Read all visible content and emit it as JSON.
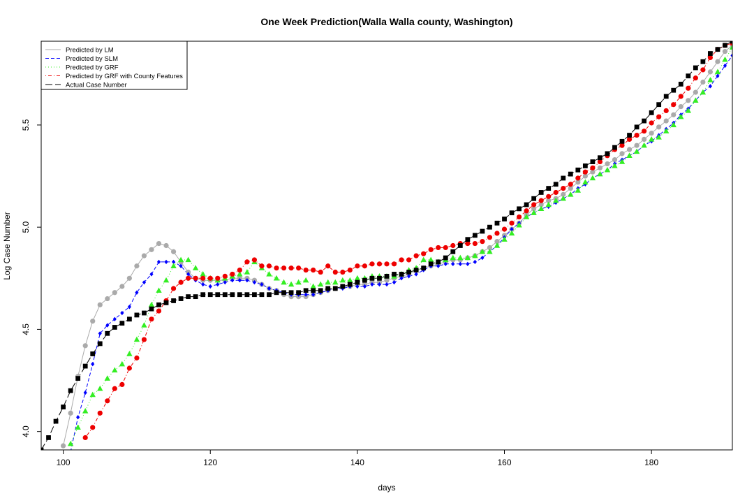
{
  "chart_data": {
    "type": "scatter",
    "title": "One Week Prediction(Walla Walla county, Washington)",
    "xlabel": "days",
    "ylabel": "Log Case Number",
    "xlim": [
      97,
      191
    ],
    "ylim": [
      3.91,
      5.91
    ],
    "xticks": [
      "100",
      "120",
      "140",
      "160",
      "180"
    ],
    "yticks": [
      "4.0",
      "4.5",
      "5.0",
      "5.5"
    ],
    "grid": false,
    "legend_position": "top-left",
    "series": [
      {
        "name": "Predicted by LM",
        "color": "#aaaaaa",
        "marker": "circle",
        "line": "solid",
        "x": [
          100,
          101,
          102,
          103,
          104,
          105,
          106,
          107,
          108,
          109,
          110,
          111,
          112,
          113,
          114,
          115,
          116,
          117,
          118,
          119,
          120,
          121,
          122,
          123,
          124,
          125,
          126,
          127,
          128,
          129,
          130,
          131,
          132,
          133,
          134,
          135,
          136,
          137,
          138,
          139,
          140,
          141,
          142,
          143,
          144,
          145,
          146,
          147,
          148,
          149,
          150,
          151,
          152,
          153,
          154,
          155,
          156,
          157,
          158,
          159,
          160,
          161,
          162,
          163,
          164,
          165,
          166,
          167,
          168,
          169,
          170,
          171,
          172,
          173,
          174,
          175,
          176,
          177,
          178,
          179,
          180,
          181,
          182,
          183,
          184,
          185,
          186,
          187,
          188,
          189,
          190,
          191
        ],
        "y": [
          3.93,
          4.09,
          4.27,
          4.42,
          4.54,
          4.62,
          4.65,
          4.68,
          4.71,
          4.75,
          4.81,
          4.86,
          4.89,
          4.92,
          4.91,
          4.88,
          4.83,
          4.78,
          4.75,
          4.74,
          4.74,
          4.74,
          4.74,
          4.75,
          4.75,
          4.75,
          4.74,
          4.72,
          4.7,
          4.69,
          4.67,
          4.66,
          4.66,
          4.66,
          4.67,
          4.68,
          4.69,
          4.7,
          4.71,
          4.71,
          4.72,
          4.72,
          4.73,
          4.73,
          4.74,
          4.75,
          4.76,
          4.77,
          4.79,
          4.8,
          4.81,
          4.82,
          4.83,
          4.84,
          4.84,
          4.85,
          4.86,
          4.88,
          4.9,
          4.93,
          4.96,
          4.99,
          5.02,
          5.06,
          5.09,
          5.11,
          5.13,
          5.14,
          5.16,
          5.19,
          5.22,
          5.25,
          5.27,
          5.29,
          5.31,
          5.33,
          5.36,
          5.38,
          5.4,
          5.43,
          5.46,
          5.49,
          5.52,
          5.55,
          5.59,
          5.62,
          5.66,
          5.71,
          5.76,
          5.81,
          5.86,
          5.89
        ]
      },
      {
        "name": "Predicted by SLM",
        "color": "#0000ff",
        "marker": "diamond",
        "line": "dashed",
        "x": [
          101,
          102,
          103,
          104,
          105,
          106,
          107,
          108,
          109,
          110,
          111,
          112,
          113,
          114,
          115,
          116,
          117,
          118,
          119,
          120,
          121,
          122,
          123,
          124,
          125,
          126,
          127,
          128,
          129,
          130,
          131,
          132,
          133,
          134,
          135,
          136,
          137,
          138,
          139,
          140,
          141,
          142,
          143,
          144,
          145,
          146,
          147,
          148,
          149,
          150,
          151,
          152,
          153,
          154,
          155,
          156,
          157,
          158,
          159,
          160,
          161,
          162,
          163,
          164,
          165,
          166,
          167,
          168,
          169,
          170,
          171,
          172,
          173,
          174,
          175,
          176,
          177,
          178,
          179,
          180,
          181,
          182,
          183,
          184,
          185,
          186,
          187,
          188,
          189,
          190,
          191
        ],
        "y": [
          3.9,
          4.07,
          4.19,
          4.33,
          4.48,
          4.52,
          4.55,
          4.58,
          4.61,
          4.68,
          4.73,
          4.77,
          4.83,
          4.83,
          4.83,
          4.81,
          4.77,
          4.74,
          4.72,
          4.71,
          4.72,
          4.73,
          4.74,
          4.74,
          4.74,
          4.73,
          4.72,
          4.7,
          4.69,
          4.68,
          4.67,
          4.67,
          4.67,
          4.67,
          4.68,
          4.69,
          4.7,
          4.7,
          4.71,
          4.71,
          4.71,
          4.72,
          4.72,
          4.72,
          4.73,
          4.75,
          4.76,
          4.77,
          4.79,
          4.81,
          4.81,
          4.82,
          4.82,
          4.82,
          4.82,
          4.83,
          4.85,
          4.88,
          4.91,
          4.95,
          4.99,
          5.02,
          5.05,
          5.07,
          5.09,
          5.1,
          5.12,
          5.14,
          5.16,
          5.19,
          5.21,
          5.24,
          5.26,
          5.28,
          5.31,
          5.33,
          5.35,
          5.37,
          5.4,
          5.42,
          5.45,
          5.48,
          5.51,
          5.55,
          5.58,
          5.62,
          5.66,
          5.69,
          5.74,
          5.79,
          5.84
        ]
      },
      {
        "name": "Predicted by GRF",
        "color": "#33ee22",
        "marker": "triangle",
        "line": "dotted",
        "x": [
          101,
          102,
          103,
          104,
          105,
          106,
          107,
          108,
          109,
          110,
          111,
          112,
          113,
          114,
          115,
          116,
          117,
          118,
          119,
          120,
          121,
          122,
          123,
          124,
          125,
          126,
          127,
          128,
          129,
          130,
          131,
          132,
          133,
          134,
          135,
          136,
          137,
          138,
          139,
          140,
          141,
          142,
          143,
          144,
          145,
          146,
          147,
          148,
          149,
          150,
          151,
          152,
          153,
          154,
          155,
          156,
          157,
          158,
          159,
          160,
          161,
          162,
          163,
          164,
          165,
          166,
          167,
          168,
          169,
          170,
          171,
          172,
          173,
          174,
          175,
          176,
          177,
          178,
          179,
          180,
          181,
          182,
          183,
          184,
          185,
          186,
          187,
          188,
          189,
          190,
          191
        ],
        "y": [
          3.94,
          4.02,
          4.1,
          4.18,
          4.21,
          4.26,
          4.3,
          4.33,
          4.38,
          4.45,
          4.52,
          4.62,
          4.69,
          4.74,
          4.81,
          4.84,
          4.84,
          4.8,
          4.77,
          4.75,
          4.74,
          4.75,
          4.76,
          4.77,
          4.78,
          4.83,
          4.8,
          4.77,
          4.75,
          4.73,
          4.72,
          4.73,
          4.74,
          4.71,
          4.72,
          4.73,
          4.73,
          4.74,
          4.74,
          4.75,
          4.75,
          4.76,
          4.76,
          4.76,
          4.76,
          4.77,
          4.79,
          4.8,
          4.84,
          4.84,
          4.83,
          4.84,
          4.85,
          4.85,
          4.85,
          4.86,
          4.88,
          4.88,
          4.91,
          4.94,
          4.97,
          5.01,
          5.05,
          5.07,
          5.09,
          5.11,
          5.13,
          5.14,
          5.16,
          5.18,
          5.22,
          5.24,
          5.26,
          5.28,
          5.3,
          5.32,
          5.35,
          5.37,
          5.4,
          5.43,
          5.44,
          5.47,
          5.5,
          5.54,
          5.57,
          5.62,
          5.66,
          5.72,
          5.76,
          5.82,
          5.88
        ]
      },
      {
        "name": "Predicted by GRF with County Features",
        "color": "#ee0000",
        "marker": "circle",
        "line": "dotdash",
        "x": [
          103,
          104,
          105,
          106,
          107,
          108,
          109,
          110,
          111,
          112,
          113,
          114,
          115,
          116,
          117,
          118,
          119,
          120,
          121,
          122,
          123,
          124,
          125,
          126,
          127,
          128,
          129,
          130,
          131,
          132,
          133,
          134,
          135,
          136,
          137,
          138,
          139,
          140,
          141,
          142,
          143,
          144,
          145,
          146,
          147,
          148,
          149,
          150,
          151,
          152,
          153,
          154,
          155,
          156,
          157,
          158,
          159,
          160,
          161,
          162,
          163,
          164,
          165,
          166,
          167,
          168,
          169,
          170,
          171,
          172,
          173,
          174,
          175,
          176,
          177,
          178,
          179,
          180,
          181,
          182,
          183,
          184,
          185,
          186,
          187,
          188,
          189,
          190,
          191
        ],
        "y": [
          3.97,
          4.02,
          4.09,
          4.15,
          4.21,
          4.23,
          4.31,
          4.36,
          4.45,
          4.55,
          4.59,
          4.64,
          4.7,
          4.73,
          4.75,
          4.75,
          4.75,
          4.75,
          4.75,
          4.76,
          4.77,
          4.79,
          4.83,
          4.84,
          4.81,
          4.81,
          4.8,
          4.8,
          4.8,
          4.8,
          4.79,
          4.79,
          4.78,
          4.81,
          4.78,
          4.78,
          4.79,
          4.81,
          4.81,
          4.82,
          4.82,
          4.82,
          4.82,
          4.84,
          4.84,
          4.86,
          4.87,
          4.89,
          4.9,
          4.9,
          4.91,
          4.92,
          4.92,
          4.92,
          4.93,
          4.95,
          4.97,
          4.99,
          5.02,
          5.05,
          5.08,
          5.11,
          5.13,
          5.15,
          5.17,
          5.19,
          5.21,
          5.24,
          5.27,
          5.29,
          5.32,
          5.35,
          5.38,
          5.4,
          5.43,
          5.45,
          5.47,
          5.51,
          5.54,
          5.57,
          5.6,
          5.64,
          5.68,
          5.73,
          5.77,
          5.83,
          5.87,
          5.89,
          5.9
        ]
      },
      {
        "name": "Actual Case Number",
        "color": "#000000",
        "marker": "square",
        "line": "longdash",
        "x": [
          97,
          98,
          99,
          100,
          101,
          102,
          103,
          104,
          105,
          106,
          107,
          108,
          109,
          110,
          111,
          112,
          113,
          114,
          115,
          116,
          117,
          118,
          119,
          120,
          121,
          122,
          123,
          124,
          125,
          126,
          127,
          128,
          129,
          130,
          131,
          132,
          133,
          134,
          135,
          136,
          137,
          138,
          139,
          140,
          141,
          142,
          143,
          144,
          145,
          146,
          147,
          148,
          149,
          150,
          151,
          152,
          153,
          154,
          155,
          156,
          157,
          158,
          159,
          160,
          161,
          162,
          163,
          164,
          165,
          166,
          167,
          168,
          169,
          170,
          171,
          172,
          173,
          174,
          175,
          176,
          177,
          178,
          179,
          180,
          181,
          182,
          183,
          184,
          185,
          186,
          187,
          188,
          189,
          190,
          191
        ],
        "y": [
          3.91,
          3.97,
          4.05,
          4.12,
          4.2,
          4.26,
          4.32,
          4.38,
          4.43,
          4.48,
          4.51,
          4.53,
          4.55,
          4.57,
          4.58,
          4.6,
          4.62,
          4.63,
          4.64,
          4.65,
          4.66,
          4.66,
          4.67,
          4.67,
          4.67,
          4.67,
          4.67,
          4.67,
          4.67,
          4.67,
          4.67,
          4.67,
          4.68,
          4.68,
          4.68,
          4.68,
          4.69,
          4.69,
          4.69,
          4.7,
          4.7,
          4.71,
          4.72,
          4.73,
          4.74,
          4.75,
          4.75,
          4.76,
          4.77,
          4.77,
          4.78,
          4.79,
          4.8,
          4.82,
          4.83,
          4.85,
          4.88,
          4.91,
          4.94,
          4.96,
          4.98,
          5.0,
          5.02,
          5.04,
          5.07,
          5.09,
          5.11,
          5.14,
          5.17,
          5.19,
          5.21,
          5.24,
          5.26,
          5.28,
          5.3,
          5.32,
          5.34,
          5.36,
          5.39,
          5.42,
          5.45,
          5.49,
          5.52,
          5.56,
          5.6,
          5.64,
          5.67,
          5.7,
          5.74,
          5.78,
          5.81,
          5.85,
          5.87,
          5.89,
          5.91
        ]
      }
    ]
  }
}
